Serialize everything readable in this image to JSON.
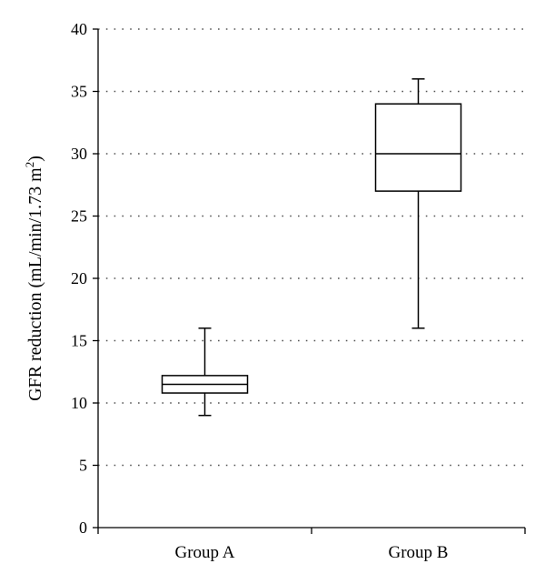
{
  "chart_data": {
    "type": "box",
    "title": "",
    "xlabel": "",
    "ylabel": "GFR reduction (mL/min/1.73 m",
    "ylabel_superscript": "2",
    "ylabel_close": ")",
    "ylim": [
      0,
      40
    ],
    "yticks": [
      0,
      5,
      10,
      15,
      20,
      25,
      30,
      35,
      40
    ],
    "ytick_labels": [
      "0",
      "5",
      "10",
      "15",
      "20",
      "25",
      "30",
      "35",
      "40"
    ],
    "grid": "horizontal-dotted",
    "categories": [
      "Group A",
      "Group B"
    ],
    "boxes": [
      {
        "category": "Group A",
        "min": 9,
        "q1": 10.8,
        "median": 11.5,
        "q3": 12.2,
        "max": 16
      },
      {
        "category": "Group B",
        "min": 16,
        "q1": 27,
        "median": 30,
        "q3": 34,
        "max": 36
      }
    ],
    "colors": {
      "box_fill": "#ffffff",
      "stroke": "#000000",
      "grid": "#555555"
    }
  }
}
